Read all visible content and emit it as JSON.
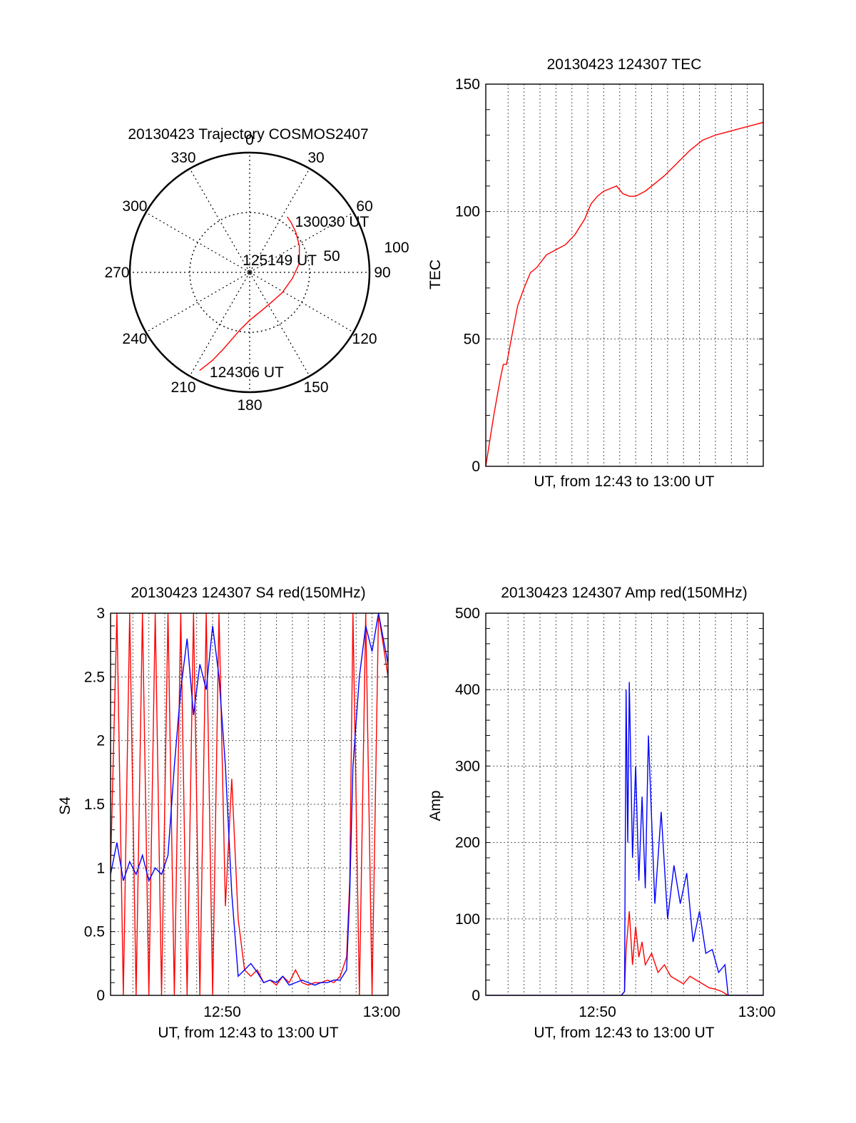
{
  "figure": {
    "colors": {
      "red": "#ff0000",
      "blue": "#0000ff",
      "axis": "#000000",
      "grid": "#555555"
    }
  },
  "chart_data": [
    {
      "id": "polar",
      "type": "polar-trajectory",
      "title": "20130423 Trajectory COSMOS2407",
      "angle_labels": [
        "0",
        "30",
        "60",
        "90",
        "120",
        "150",
        "180",
        "210",
        "240",
        "270",
        "300",
        "330"
      ],
      "radial_labels": [
        "50",
        "100"
      ],
      "radial_range": [
        0,
        100
      ],
      "grid": true,
      "trajectory": {
        "color": "#ff0000",
        "points": [
          [
            207,
            92
          ],
          [
            203,
            80
          ],
          [
            199,
            68
          ],
          [
            195,
            58
          ],
          [
            189,
            48
          ],
          [
            180,
            40
          ],
          [
            165,
            34
          ],
          [
            146,
            31
          ],
          [
            122,
            32
          ],
          [
            98,
            36
          ],
          [
            80,
            42
          ],
          [
            62,
            47
          ],
          [
            49,
            51
          ],
          [
            40,
            54
          ],
          [
            34,
            56
          ]
        ]
      },
      "annotations": [
        {
          "text": "130030 UT",
          "az": 40,
          "r": 56
        },
        {
          "text": "125149 UT",
          "az": 287,
          "r": 8
        },
        {
          "text": "124306 UT",
          "az": 203,
          "r": 90
        }
      ]
    },
    {
      "id": "tec",
      "type": "line",
      "title": "20130423 124307 TEC",
      "xlabel": "UT, from 12:43 to 13:00 UT",
      "ylabel": "TEC",
      "xlim": [
        0,
        17.4
      ],
      "ylim": [
        0,
        150
      ],
      "xticks": [],
      "yticks": [
        0,
        50,
        100,
        150
      ],
      "grid": true,
      "series": [
        {
          "color": "#ff0000",
          "x": [
            0,
            0.5,
            0.9,
            1.1,
            1.3,
            1.6,
            2.0,
            2.4,
            2.8,
            3.2,
            3.8,
            4.4,
            5.0,
            5.6,
            6.2,
            6.6,
            7.0,
            7.4,
            7.8,
            8.2,
            8.6,
            9.0,
            9.4,
            10.0,
            10.6,
            11.2,
            12.0,
            12.8,
            13.6,
            14.4,
            15.0,
            15.6,
            16.2,
            16.8,
            17.4
          ],
          "values": [
            0,
            20,
            34,
            40,
            40,
            50,
            63,
            70,
            76,
            78,
            83,
            85,
            87,
            91,
            97,
            103,
            106,
            108,
            109,
            110,
            107,
            106,
            106,
            108,
            111,
            114,
            119,
            124,
            128,
            130,
            131,
            132,
            133,
            134,
            135
          ]
        }
      ]
    },
    {
      "id": "s4",
      "type": "line",
      "title": "20130423 124307 S4 red(150MHz)",
      "xlabel": "UT, from 12:43 to 13:00 UT",
      "ylabel": "S4",
      "xlim": [
        0,
        17.4
      ],
      "ylim": [
        0,
        3
      ],
      "xticks": [
        {
          "v": 7,
          "label": "12:50"
        },
        {
          "v": 17,
          "label": "13:00"
        }
      ],
      "yticks": [
        0,
        0.5,
        1,
        1.5,
        2,
        2.5,
        3
      ],
      "yticklabels": [
        "0",
        "0.5",
        "1",
        "1.5",
        "2",
        "2.5",
        "3"
      ],
      "grid": true,
      "series": [
        {
          "name": "red",
          "color": "#ff0000",
          "x": [
            0,
            0.4,
            0.8,
            1.2,
            1.6,
            2.0,
            2.4,
            2.8,
            3.2,
            3.6,
            4.0,
            4.4,
            4.8,
            5.2,
            5.6,
            6.0,
            6.4,
            6.8,
            7.2,
            7.6,
            8.0,
            8.4,
            8.8,
            9.2,
            9.6,
            10.0,
            10.4,
            10.8,
            11.2,
            11.6,
            12.0,
            12.4,
            12.8,
            13.2,
            13.6,
            14.0,
            14.4,
            14.8,
            15.0,
            15.2,
            15.6,
            16.0,
            16.4,
            16.8,
            17.4
          ],
          "values": [
            1.0,
            3.0,
            0,
            3.0,
            0,
            3.0,
            0,
            3.0,
            0,
            3.0,
            0,
            3.0,
            0,
            3.0,
            0,
            3.0,
            0,
            3.0,
            0.7,
            1.7,
            0.6,
            0.2,
            0.15,
            0.2,
            0.1,
            0.12,
            0.08,
            0.15,
            0.1,
            0.2,
            0.1,
            0.08,
            0.1,
            0.1,
            0.12,
            0.1,
            0.15,
            0.3,
            0.9,
            3.0,
            0,
            3.0,
            0,
            3.0,
            2.5
          ]
        },
        {
          "name": "blue",
          "color": "#0000ff",
          "x": [
            0,
            0.4,
            0.8,
            1.2,
            1.6,
            2.0,
            2.4,
            2.8,
            3.2,
            3.6,
            4.0,
            4.4,
            4.8,
            5.2,
            5.6,
            6.0,
            6.4,
            6.8,
            7.2,
            7.6,
            8.0,
            8.4,
            8.8,
            9.2,
            9.6,
            10.0,
            10.4,
            10.8,
            11.2,
            11.6,
            12.0,
            12.4,
            12.8,
            13.2,
            13.6,
            14.0,
            14.4,
            14.8,
            15.0,
            15.2,
            15.6,
            16.0,
            16.4,
            16.8,
            17.4
          ],
          "values": [
            0.95,
            1.2,
            0.9,
            1.05,
            0.95,
            1.1,
            0.9,
            1.0,
            0.95,
            1.1,
            1.8,
            2.4,
            2.8,
            2.2,
            2.6,
            2.4,
            2.9,
            2.5,
            1.8,
            0.8,
            0.15,
            0.2,
            0.25,
            0.18,
            0.1,
            0.12,
            0.1,
            0.15,
            0.08,
            0.1,
            0.12,
            0.1,
            0.08,
            0.1,
            0.1,
            0.12,
            0.12,
            0.2,
            0.8,
            1.8,
            2.5,
            2.9,
            2.7,
            3.0,
            2.6
          ]
        }
      ]
    },
    {
      "id": "amp",
      "type": "line",
      "title": "20130423 124307 Amp red(150MHz)",
      "xlabel": "UT, from 12:43 to 13:00 UT",
      "ylabel": "Amp",
      "xlim": [
        0,
        17.4
      ],
      "ylim": [
        0,
        500
      ],
      "xticks": [
        {
          "v": 7,
          "label": "12:50"
        },
        {
          "v": 17,
          "label": "13:00"
        }
      ],
      "yticks": [
        0,
        100,
        200,
        300,
        400,
        500
      ],
      "grid": true,
      "series": [
        {
          "name": "red",
          "color": "#ff0000",
          "x": [
            0,
            8.5,
            8.7,
            8.8,
            9.0,
            9.2,
            9.4,
            9.6,
            9.8,
            10.0,
            10.4,
            10.8,
            11.2,
            11.6,
            12.0,
            12.4,
            12.8,
            13.2,
            13.6,
            14.0,
            14.4,
            14.8,
            15.2,
            17.4
          ],
          "values": [
            0,
            0,
            5,
            60,
            110,
            40,
            90,
            50,
            70,
            40,
            55,
            30,
            40,
            25,
            20,
            15,
            25,
            20,
            15,
            10,
            8,
            5,
            0,
            0
          ]
        },
        {
          "name": "blue",
          "color": "#0000ff",
          "x": [
            0,
            8.5,
            8.7,
            8.8,
            8.9,
            9.0,
            9.2,
            9.4,
            9.6,
            9.8,
            10.0,
            10.2,
            10.6,
            11.0,
            11.4,
            11.8,
            12.2,
            12.6,
            13.0,
            13.4,
            13.8,
            14.2,
            14.6,
            15.0,
            15.2,
            17.4
          ],
          "values": [
            0,
            0,
            5,
            400,
            200,
            410,
            180,
            300,
            150,
            260,
            140,
            340,
            120,
            240,
            100,
            170,
            120,
            160,
            70,
            110,
            55,
            60,
            30,
            40,
            0,
            0
          ]
        }
      ]
    }
  ]
}
